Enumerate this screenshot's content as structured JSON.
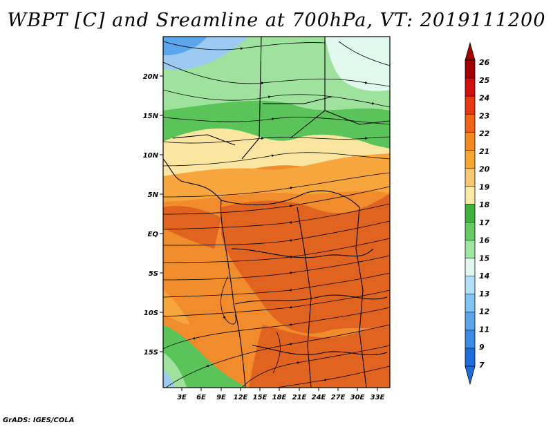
{
  "title": "WBPT [C] and Sreamline at 700hPa, VT: 2019111200",
  "credit": "GrADS: IGES/COLA",
  "lat_labels": [
    "20N",
    "15N",
    "10N",
    "5N",
    "EQ",
    "5S",
    "10S",
    "15S"
  ],
  "lon_labels": [
    "3E",
    "6E",
    "9E",
    "12E",
    "15E",
    "18E",
    "21E",
    "24E",
    "27E",
    "30E",
    "33E"
  ],
  "colorbar_labels": [
    "26",
    "25",
    "24",
    "23",
    "22",
    "21",
    "20",
    "19",
    "18",
    "17",
    "16",
    "15",
    "14",
    "13",
    "12",
    "11",
    "9",
    "7"
  ],
  "colorbar_colors": [
    "#a50000",
    "#d01010",
    "#e83a10",
    "#f26418",
    "#f58a20",
    "#f7a832",
    "#f8c870",
    "#faeaa8",
    "#3cb43c",
    "#66cc66",
    "#a0e6a0",
    "#e0f8ee",
    "#b4e0f8",
    "#82c4f4",
    "#5ca6ee",
    "#3c8ce6",
    "#1e6edc"
  ],
  "colors": {
    "orange": "#f18c2c",
    "dark_orange": "#e06420",
    "light_orange": "#f6a63c",
    "yellow": "#fae6a0",
    "green": "#5ac45a",
    "light_green": "#9ee29e",
    "blue": "#9ccaf2"
  }
}
